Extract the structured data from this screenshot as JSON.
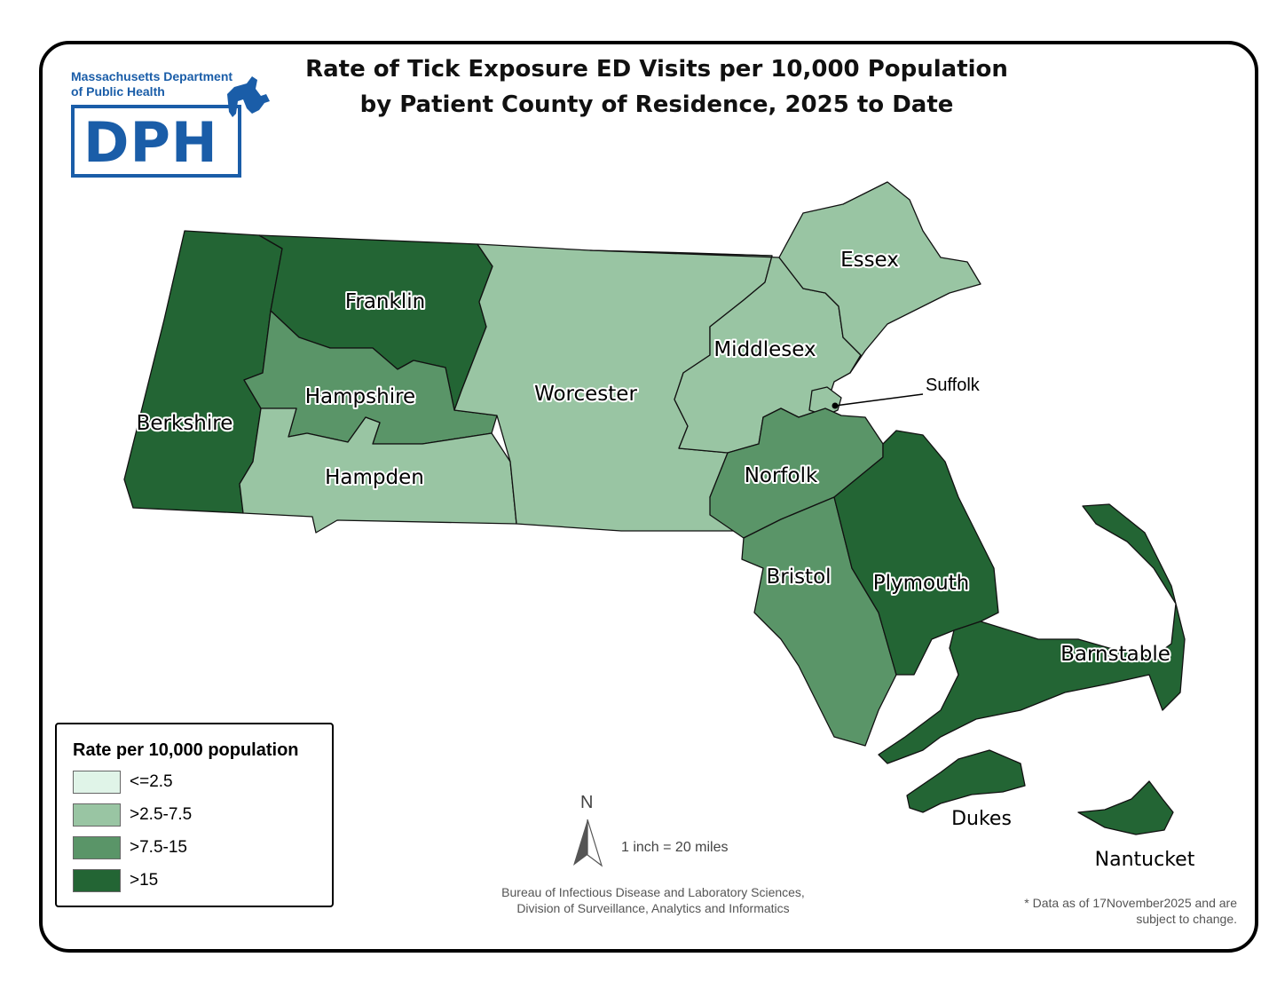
{
  "title": {
    "line1": "Rate of Tick Exposure ED Visits per 10,000 Population",
    "line2": "by Patient County of Residence, 2025 to Date"
  },
  "logo": {
    "org_line1": "Massachusetts Department",
    "org_line2": "of Public Health",
    "acronym": "DPH",
    "color": "#1a5da8"
  },
  "legend": {
    "title": "Rate per 10,000 population",
    "classes": [
      {
        "label": "<=2.5",
        "color": "#e0f4e8"
      },
      {
        "label": ">2.5-7.5",
        "color": "#99c5a3"
      },
      {
        "label": ">7.5-15",
        "color": "#5a9568"
      },
      {
        "label": ">15",
        "color": "#236534"
      }
    ]
  },
  "counties": {
    "berkshire": {
      "name": "Berkshire",
      "rate_class": ">15"
    },
    "franklin": {
      "name": "Franklin",
      "rate_class": ">15"
    },
    "hampshire": {
      "name": "Hampshire",
      "rate_class": ">7.5-15"
    },
    "hampden": {
      "name": "Hampden",
      "rate_class": ">2.5-7.5"
    },
    "worcester": {
      "name": "Worcester",
      "rate_class": ">2.5-7.5"
    },
    "middlesex": {
      "name": "Middlesex",
      "rate_class": ">2.5-7.5"
    },
    "essex": {
      "name": "Essex",
      "rate_class": ">2.5-7.5"
    },
    "suffolk": {
      "name": "Suffolk",
      "rate_class": ">2.5-7.5"
    },
    "norfolk": {
      "name": "Norfolk",
      "rate_class": ">7.5-15"
    },
    "bristol": {
      "name": "Bristol",
      "rate_class": ">7.5-15"
    },
    "plymouth": {
      "name": "Plymouth",
      "rate_class": ">15"
    },
    "barnstable": {
      "name": "Barnstable",
      "rate_class": ">15"
    },
    "dukes": {
      "name": "Dukes",
      "rate_class": ">15"
    },
    "nantucket": {
      "name": "Nantucket",
      "rate_class": ">15"
    }
  },
  "north_arrow": {
    "letter": "N"
  },
  "scale": {
    "text": "1 inch = 20 miles"
  },
  "credit": {
    "line1": "Bureau of Infectious Disease and Laboratory Sciences,",
    "line2": "Division of Surveillance, Analytics and Informatics"
  },
  "note": {
    "line1": "* Data as of 17November2025 and are",
    "line2": "subject to change."
  }
}
